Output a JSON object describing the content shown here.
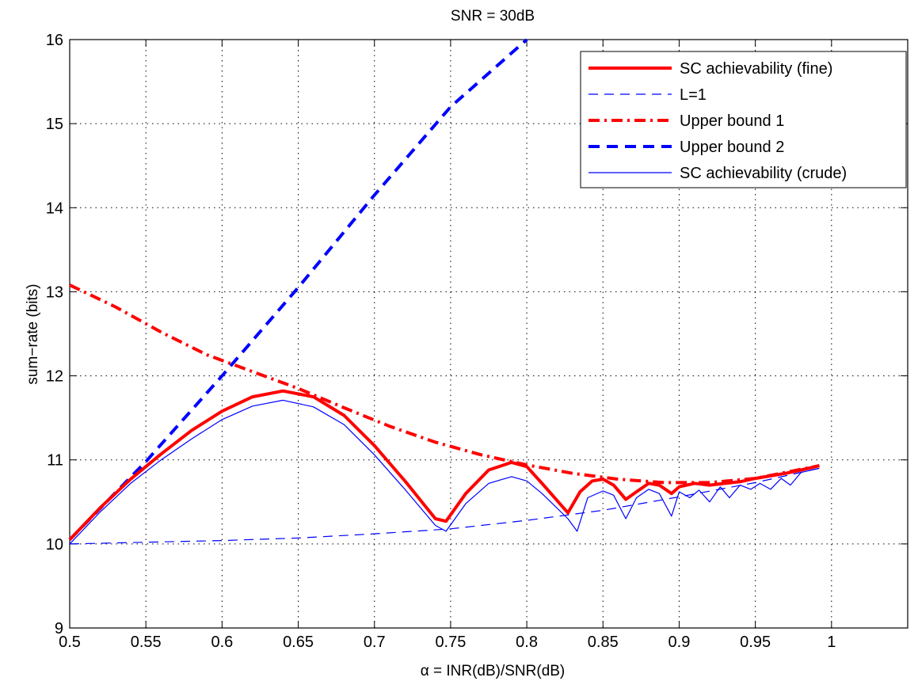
{
  "chart_data": {
    "type": "line",
    "title": "SNR = 30dB",
    "xlabel": "α = INR(dB)/SNR(dB)",
    "ylabel": "sum−rate (bits)",
    "xlim": [
      0.5,
      1.05
    ],
    "ylim": [
      9,
      16
    ],
    "xticks": [
      0.5,
      0.55,
      0.6,
      0.65,
      0.7,
      0.75,
      0.8,
      0.85,
      0.9,
      0.95,
      1
    ],
    "xtick_labels": [
      "0.5",
      "0.55",
      "0.6",
      "0.65",
      "0.7",
      "0.75",
      "0.8",
      "0.85",
      "0.9",
      "0.95",
      "1"
    ],
    "yticks": [
      9,
      10,
      11,
      12,
      13,
      14,
      15,
      16
    ],
    "ytick_labels": [
      "9",
      "10",
      "11",
      "12",
      "13",
      "14",
      "15",
      "16"
    ],
    "grid": true,
    "legend_position": "top-right",
    "series": [
      {
        "name": "SC achievability (fine)",
        "color": "#ff0000",
        "dash": "solid",
        "width": "thick",
        "x": [
          0.5,
          0.52,
          0.54,
          0.56,
          0.58,
          0.6,
          0.62,
          0.64,
          0.66,
          0.68,
          0.7,
          0.72,
          0.74,
          0.747,
          0.76,
          0.775,
          0.79,
          0.8,
          0.81,
          0.827,
          0.835,
          0.843,
          0.85,
          0.857,
          0.865,
          0.872,
          0.88,
          0.887,
          0.895,
          0.9,
          0.91,
          0.92,
          0.93,
          0.94,
          0.95,
          0.96,
          0.97,
          0.98,
          0.992
        ],
        "y": [
          10.05,
          10.43,
          10.77,
          11.07,
          11.35,
          11.58,
          11.75,
          11.82,
          11.75,
          11.53,
          11.17,
          10.75,
          10.3,
          10.27,
          10.6,
          10.88,
          10.97,
          10.92,
          10.72,
          10.37,
          10.62,
          10.75,
          10.77,
          10.7,
          10.53,
          10.62,
          10.72,
          10.7,
          10.6,
          10.68,
          10.72,
          10.7,
          10.72,
          10.74,
          10.78,
          10.81,
          10.84,
          10.88,
          10.93
        ]
      },
      {
        "name": "L=1",
        "color": "#0000ff",
        "dash": "dashed",
        "width": "thin",
        "x": [
          0.5,
          0.55,
          0.6,
          0.65,
          0.7,
          0.75,
          0.8,
          0.85,
          0.9,
          0.95,
          0.992
        ],
        "y": [
          10.0,
          10.02,
          10.04,
          10.07,
          10.12,
          10.18,
          10.28,
          10.4,
          10.56,
          10.73,
          10.9
        ]
      },
      {
        "name": "Upper bound 1",
        "color": "#ff0000",
        "dash": "dashdot",
        "width": "thick",
        "x": [
          0.5,
          0.53,
          0.56,
          0.59,
          0.62,
          0.65,
          0.68,
          0.71,
          0.74,
          0.77,
          0.8,
          0.83,
          0.86,
          0.89,
          0.92,
          0.95,
          0.992
        ],
        "y": [
          13.08,
          12.82,
          12.52,
          12.25,
          12.05,
          11.85,
          11.62,
          11.4,
          11.21,
          11.06,
          10.94,
          10.84,
          10.77,
          10.73,
          10.73,
          10.78,
          10.93
        ]
      },
      {
        "name": "Upper bound 2",
        "color": "#0000ff",
        "dash": "dashed",
        "width": "thick",
        "x": [
          0.5,
          0.55,
          0.6,
          0.65,
          0.7,
          0.75,
          0.8
        ],
        "y": [
          10.05,
          10.98,
          12.0,
          13.05,
          14.15,
          15.2,
          16.0
        ]
      },
      {
        "name": "SC achievability (crude)",
        "color": "#0000ff",
        "dash": "solid",
        "width": "thin",
        "x": [
          0.5,
          0.52,
          0.54,
          0.56,
          0.58,
          0.6,
          0.62,
          0.64,
          0.66,
          0.68,
          0.7,
          0.72,
          0.74,
          0.747,
          0.76,
          0.775,
          0.79,
          0.8,
          0.81,
          0.827,
          0.833,
          0.84,
          0.85,
          0.857,
          0.865,
          0.872,
          0.88,
          0.887,
          0.895,
          0.9,
          0.907,
          0.913,
          0.92,
          0.927,
          0.933,
          0.94,
          0.947,
          0.953,
          0.96,
          0.967,
          0.973,
          0.98,
          0.992
        ],
        "y": [
          10.0,
          10.38,
          10.72,
          11.0,
          11.25,
          11.48,
          11.64,
          11.71,
          11.63,
          11.42,
          11.06,
          10.65,
          10.22,
          10.15,
          10.48,
          10.72,
          10.8,
          10.75,
          10.6,
          10.3,
          10.15,
          10.55,
          10.63,
          10.58,
          10.3,
          10.55,
          10.65,
          10.6,
          10.33,
          10.62,
          10.55,
          10.64,
          10.5,
          10.68,
          10.55,
          10.7,
          10.65,
          10.72,
          10.65,
          10.78,
          10.7,
          10.85,
          10.9
        ]
      }
    ]
  }
}
